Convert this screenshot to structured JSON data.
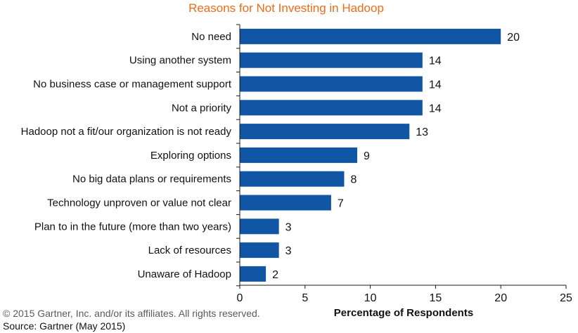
{
  "colors": {
    "title": "#ef6c1a",
    "bar": "#1155a5",
    "axis": "#1a1a1a",
    "text": "#111111",
    "footer_text": "#5a5a5a"
  },
  "footer": {
    "copyright": "© 2015 Gartner, Inc. and/or its affiliates. All rights reserved.",
    "source": "Source: Gartner (May 2015)"
  },
  "chart_data": {
    "type": "bar",
    "orientation": "horizontal",
    "title": "Reasons for Not Investing in Hadoop",
    "xlabel": "Percentage of Respondents",
    "ylabel": "",
    "xlim": [
      0,
      25
    ],
    "xticks": [
      "0",
      "5",
      "10",
      "15",
      "20",
      "25"
    ],
    "grid": false,
    "categories": [
      "No need",
      "Using another system",
      "No business case or management support",
      "Not a priority",
      "Hadoop not a fit/our organization is not ready",
      "Exploring options",
      "No big data plans or requirements",
      "Technology unproven or value not clear",
      "Plan to in the future (more than two years)",
      "Lack of resources",
      "Unaware of Hadoop"
    ],
    "values": [
      20,
      14,
      14,
      14,
      13,
      9,
      8,
      7,
      3,
      3,
      2
    ],
    "data_labels": [
      "20",
      "14",
      "14",
      "14",
      "13",
      "9",
      "8",
      "7",
      "3",
      "3",
      "2"
    ]
  }
}
